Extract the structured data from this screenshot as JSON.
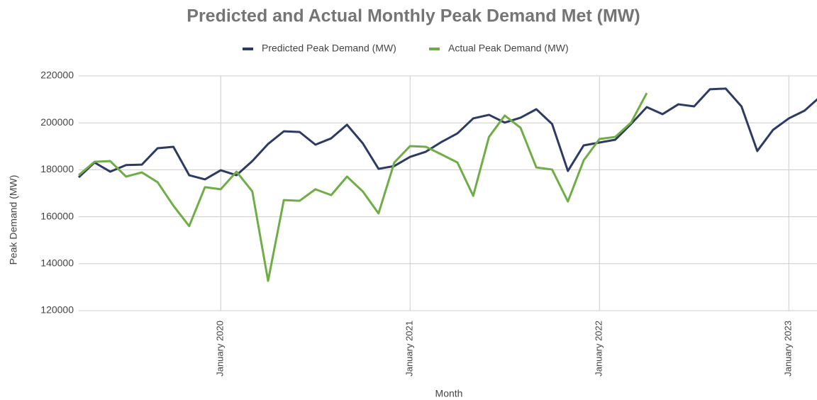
{
  "chart_data": {
    "type": "line",
    "title": "Predicted and Actual Monthly Peak Demand Met (MW)",
    "x_label": "Month",
    "y_label": "Peak Demand (MW)",
    "categories": [
      null,
      null,
      null,
      null,
      null,
      null,
      null,
      null,
      null,
      "January 2020",
      null,
      null,
      null,
      null,
      null,
      null,
      null,
      null,
      null,
      null,
      null,
      "January 2021",
      null,
      null,
      null,
      null,
      null,
      null,
      null,
      null,
      null,
      null,
      null,
      "January 2022",
      null,
      null,
      null,
      null,
      null,
      null,
      null,
      null,
      null,
      null,
      null,
      "January 2023",
      null,
      null
    ],
    "series": [
      {
        "name": "Predicted Peak Demand (MW)",
        "color": "#2d3a63",
        "values": [
          176800,
          183100,
          179200,
          182000,
          182200,
          189200,
          189800,
          177700,
          175900,
          179800,
          177700,
          183700,
          191000,
          196400,
          196100,
          190700,
          193400,
          199200,
          191300,
          180400,
          181600,
          185500,
          187700,
          191900,
          195500,
          201900,
          203400,
          200100,
          202200,
          205800,
          199500,
          179500,
          190400,
          191600,
          192800,
          199500,
          206700,
          203700,
          207900,
          207000,
          214300,
          214600,
          207000,
          188000,
          197000,
          201900,
          205200,
          211200
        ]
      },
      {
        "name": "Actual Peak Demand (MW)",
        "color": "#6fad46",
        "values": [
          177700,
          183400,
          183700,
          177100,
          178900,
          174700,
          164700,
          156000,
          172600,
          171700,
          179200,
          170800,
          132700,
          167100,
          166800,
          171700,
          169200,
          177100,
          170800,
          161400,
          183100,
          190100,
          189800,
          186500,
          183100,
          168900,
          194000,
          203100,
          197900,
          181000,
          180100,
          166500,
          184000,
          193100,
          194000,
          200100,
          212700,
          null,
          null,
          null,
          null,
          null,
          null,
          null,
          null,
          null,
          null,
          null
        ]
      }
    ],
    "ylim": [
      120000,
      220000
    ],
    "yticks": [
      120000,
      140000,
      160000,
      180000,
      200000,
      220000
    ],
    "grid": true
  }
}
